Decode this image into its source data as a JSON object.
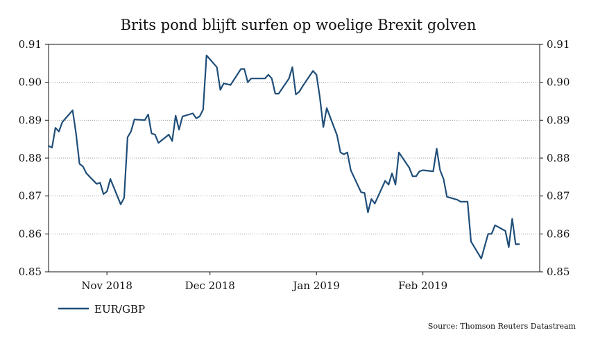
{
  "chart_data": {
    "type": "line",
    "title": "Brits pond blijft surfen op woelige Brexit golven",
    "source": "Source: Thomson Reuters Datastream",
    "ylim": [
      0.85,
      0.91
    ],
    "yticks": [
      "0.91",
      "0.90",
      "0.89",
      "0.88",
      "0.87",
      "0.86",
      "0.85"
    ],
    "xlim": [
      "2018-10-15",
      "2019-03-07"
    ],
    "xticks": [
      {
        "label": "Nov 2018",
        "date": "2018-11-01"
      },
      {
        "label": "Dec 2018",
        "date": "2018-12-01"
      },
      {
        "label": "Jan 2019",
        "date": "2019-01-01"
      },
      {
        "label": "Feb 2019",
        "date": "2019-02-01"
      }
    ],
    "grid": true,
    "legend_position": "bottom-left",
    "series": [
      {
        "name": "EUR/GBP",
        "color": "#1f4e79",
        "x": [
          "2018-10-15",
          "2018-10-16",
          "2018-10-17",
          "2018-10-18",
          "2018-10-19",
          "2018-10-22",
          "2018-10-23",
          "2018-10-24",
          "2018-10-25",
          "2018-10-26",
          "2018-10-29",
          "2018-10-30",
          "2018-10-31",
          "2018-11-01",
          "2018-11-02",
          "2018-11-05",
          "2018-11-06",
          "2018-11-07",
          "2018-11-08",
          "2018-11-09",
          "2018-11-12",
          "2018-11-13",
          "2018-11-14",
          "2018-11-15",
          "2018-11-16",
          "2018-11-19",
          "2018-11-20",
          "2018-11-21",
          "2018-11-22",
          "2018-11-23",
          "2018-11-26",
          "2018-11-27",
          "2018-11-28",
          "2018-11-29",
          "2018-11-30",
          "2018-12-03",
          "2018-12-04",
          "2018-12-05",
          "2018-12-06",
          "2018-12-07",
          "2018-12-10",
          "2018-12-11",
          "2018-12-12",
          "2018-12-13",
          "2018-12-14",
          "2018-12-17",
          "2018-12-18",
          "2018-12-19",
          "2018-12-20",
          "2018-12-21",
          "2018-12-24",
          "2018-12-25",
          "2018-12-26",
          "2018-12-27",
          "2018-12-28",
          "2018-12-31",
          "2019-01-01",
          "2019-01-02",
          "2019-01-03",
          "2019-01-04",
          "2019-01-07",
          "2019-01-08",
          "2019-01-09",
          "2019-01-10",
          "2019-01-11",
          "2019-01-14",
          "2019-01-15",
          "2019-01-16",
          "2019-01-17",
          "2019-01-18",
          "2019-01-21",
          "2019-01-22",
          "2019-01-23",
          "2019-01-24",
          "2019-01-25",
          "2019-01-28",
          "2019-01-29",
          "2019-01-30",
          "2019-01-31",
          "2019-02-01",
          "2019-02-04",
          "2019-02-05",
          "2019-02-06",
          "2019-02-07",
          "2019-02-08",
          "2019-02-11",
          "2019-02-12",
          "2019-02-13",
          "2019-02-14",
          "2019-02-15",
          "2019-02-18",
          "2019-02-19",
          "2019-02-20",
          "2019-02-21",
          "2019-02-22",
          "2019-02-25",
          "2019-02-26",
          "2019-02-27",
          "2019-02-28",
          "2019-03-01"
        ],
        "y": [
          0.8832,
          0.8828,
          0.888,
          0.887,
          0.8895,
          0.8926,
          0.8865,
          0.8785,
          0.8778,
          0.876,
          0.8732,
          0.8735,
          0.8705,
          0.8712,
          0.8745,
          0.8678,
          0.8695,
          0.8855,
          0.887,
          0.8902,
          0.89,
          0.8915,
          0.8865,
          0.8862,
          0.884,
          0.8862,
          0.8845,
          0.8912,
          0.8875,
          0.891,
          0.8918,
          0.8905,
          0.891,
          0.8928,
          0.9071,
          0.904,
          0.898,
          0.8997,
          0.8995,
          0.8993,
          0.9035,
          0.9035,
          0.9,
          0.901,
          0.901,
          0.901,
          0.902,
          0.901,
          0.897,
          0.897,
          0.901,
          0.904,
          0.8968,
          0.8975,
          0.899,
          0.903,
          0.902,
          0.896,
          0.8882,
          0.8932,
          0.886,
          0.8815,
          0.881,
          0.8815,
          0.8768,
          0.871,
          0.8708,
          0.8657,
          0.8692,
          0.868,
          0.874,
          0.873,
          0.876,
          0.873,
          0.8815,
          0.8775,
          0.8752,
          0.8752,
          0.8765,
          0.8768,
          0.8765,
          0.8825,
          0.8768,
          0.8745,
          0.8698,
          0.869,
          0.8685,
          0.8685,
          0.8685,
          0.858,
          0.8535,
          0.8568,
          0.86,
          0.86,
          0.8623,
          0.8608,
          0.8565,
          0.864,
          0.8573,
          0.8573
        ]
      }
    ]
  }
}
